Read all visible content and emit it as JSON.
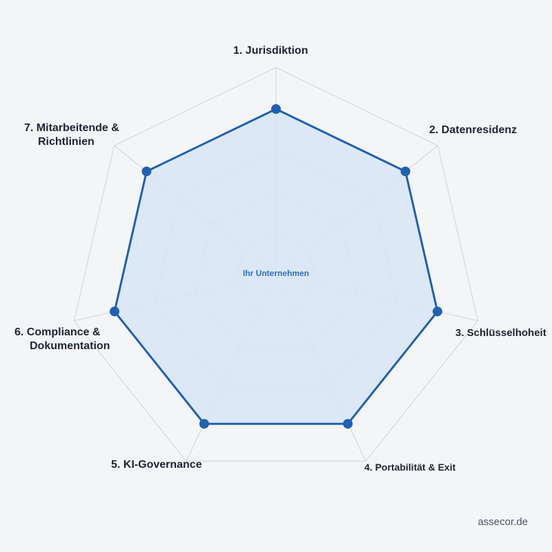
{
  "chart_data": {
    "type": "radar",
    "axes": [
      "1. Jurisdiktion",
      "2. Datenresidenz",
      "3. Schlüsselhoheit",
      "4. Portabilität & Exit",
      "5. KI-Governance",
      "6. Compliance & Dokumentation",
      "7. Mitarbeitende & Richtlinien"
    ],
    "axis_label_lines": [
      [
        "1. Jurisdiktion"
      ],
      [
        "2. Datenresidenz"
      ],
      [
        "3. Schlüsselhoheit"
      ],
      [
        "4. Portabilität & Exit"
      ],
      [
        "5. KI-Governance"
      ],
      [
        "6. Compliance &",
        "Dokumentation"
      ],
      [
        "7. Mitarbeitende &",
        "Richtlinien"
      ]
    ],
    "series": [
      {
        "name": "Ihr Unternehmen",
        "values": [
          8,
          8,
          8,
          8,
          8,
          8,
          8
        ]
      }
    ],
    "scale_max": 10,
    "rings": 5,
    "grid": true,
    "colors": {
      "line": "#2160b0",
      "fill": "#d7e5f5",
      "grid": "#cfd3d8",
      "background": "#f4f5f7"
    }
  },
  "watermark": "assecor.de"
}
